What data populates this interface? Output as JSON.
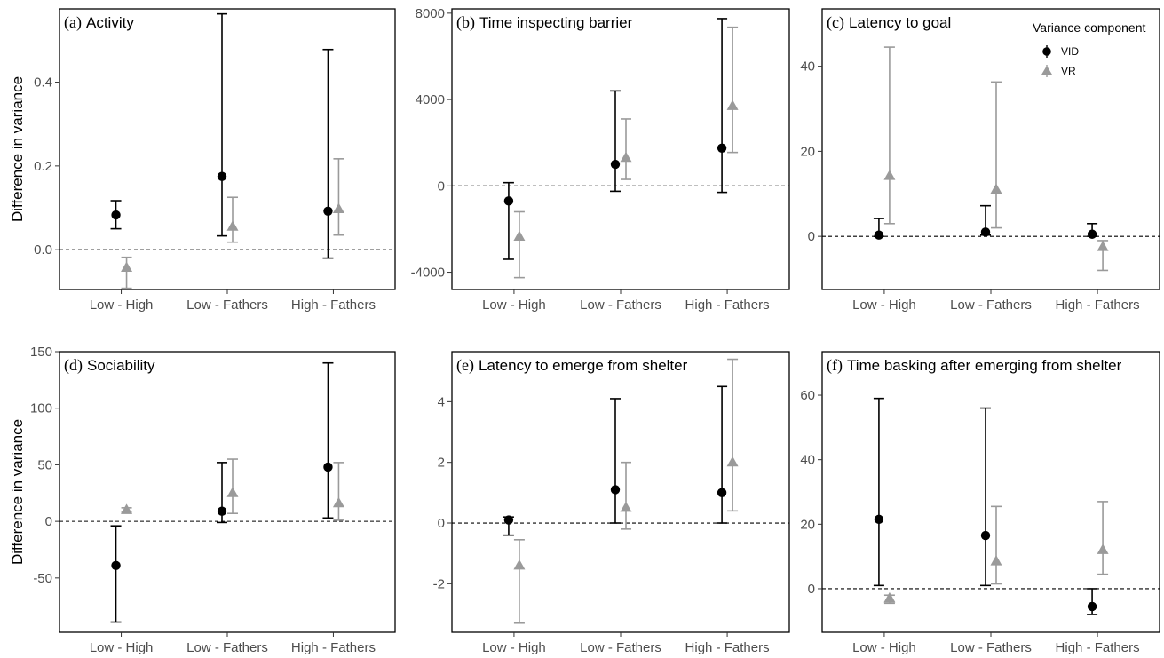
{
  "ylabel": "Difference in variance",
  "legend": {
    "title": "Variance component",
    "entries": [
      "VID",
      "VR"
    ]
  },
  "colors": {
    "VID": "#000000",
    "VR": "#9a9a9a",
    "refline": "#000000"
  },
  "chart_data": [
    {
      "type": "scatter",
      "letter": "(a)",
      "title": "Activity",
      "categories": [
        "Low - High",
        "Low - Fathers",
        "High - Fathers"
      ],
      "ylim": [
        -0.095,
        0.575
      ],
      "yticks": [
        0.0,
        0.2,
        0.4
      ],
      "ytick_labels": [
        "0.0",
        "0.2",
        "0.4"
      ],
      "reference_line": 0,
      "series": [
        {
          "name": "VID",
          "marker": "circle",
          "values": [
            0.083,
            0.175,
            0.092
          ],
          "lower": [
            0.05,
            0.033,
            -0.02
          ],
          "upper": [
            0.117,
            0.563,
            0.478
          ]
        },
        {
          "name": "VR",
          "marker": "triangle",
          "values": [
            -0.043,
            0.055,
            0.097
          ],
          "lower": [
            -0.092,
            0.018,
            0.035
          ],
          "upper": [
            -0.018,
            0.125,
            0.217
          ]
        }
      ]
    },
    {
      "type": "scatter",
      "letter": "(b)",
      "title": "Time inspecting barrier",
      "categories": [
        "Low - High",
        "Low - Fathers",
        "High - Fathers"
      ],
      "ylim": [
        -4800,
        8200
      ],
      "yticks": [
        -4000,
        0,
        4000,
        8000
      ],
      "ytick_labels": [
        "-4000",
        "0",
        "4000",
        "8000"
      ],
      "reference_line": 0,
      "series": [
        {
          "name": "VID",
          "marker": "circle",
          "values": [
            -700,
            1000,
            1750
          ],
          "lower": [
            -3400,
            -250,
            -300
          ],
          "upper": [
            150,
            4400,
            7750
          ]
        },
        {
          "name": "VR",
          "marker": "triangle",
          "values": [
            -2350,
            1300,
            3700
          ],
          "lower": [
            -4250,
            300,
            1550
          ],
          "upper": [
            -1200,
            3100,
            7350
          ]
        }
      ]
    },
    {
      "type": "scatter",
      "letter": "(c)",
      "title": "Latency to goal",
      "categories": [
        "Low - High",
        "Low - Fathers",
        "High - Fathers"
      ],
      "ylim": [
        -12.5,
        53.5
      ],
      "yticks": [
        0,
        20,
        40
      ],
      "ytick_labels": [
        "0",
        "20",
        "40"
      ],
      "reference_line": 0,
      "series": [
        {
          "name": "VID",
          "marker": "circle",
          "values": [
            0.3,
            1.0,
            0.5
          ],
          "lower": [
            0.0,
            0.3,
            0.0
          ],
          "upper": [
            4.2,
            7.2,
            3.0
          ]
        },
        {
          "name": "VR",
          "marker": "triangle",
          "values": [
            14.2,
            11.0,
            -2.5
          ],
          "lower": [
            3.0,
            2.0,
            -8.0
          ],
          "upper": [
            44.5,
            36.3,
            -1.0
          ]
        }
      ]
    },
    {
      "type": "scatter",
      "letter": "(d)",
      "title": "Sociability",
      "categories": [
        "Low - High",
        "Low - Fathers",
        "High - Fathers"
      ],
      "ylim": [
        -98,
        150
      ],
      "yticks": [
        -50,
        0,
        50,
        100,
        150
      ],
      "ytick_labels": [
        "-50",
        "0",
        "50",
        "100",
        "150"
      ],
      "reference_line": 0,
      "series": [
        {
          "name": "VID",
          "marker": "circle",
          "values": [
            -39,
            9,
            48
          ],
          "lower": [
            -89,
            -1,
            3
          ],
          "upper": [
            -4,
            52,
            140
          ]
        },
        {
          "name": "VR",
          "marker": "triangle",
          "values": [
            10,
            25,
            16
          ],
          "lower": [
            8,
            7,
            1
          ],
          "upper": [
            12,
            55,
            52
          ]
        }
      ]
    },
    {
      "type": "scatter",
      "letter": "(e)",
      "title": "Latency to emerge from shelter",
      "categories": [
        "Low - High",
        "Low - Fathers",
        "High - Fathers"
      ],
      "ylim": [
        -3.6,
        5.65
      ],
      "yticks": [
        -2,
        0,
        2,
        4
      ],
      "ytick_labels": [
        "-2",
        "0",
        "2",
        "4"
      ],
      "reference_line": 0,
      "series": [
        {
          "name": "VID",
          "marker": "circle",
          "values": [
            0.1,
            1.1,
            1.0
          ],
          "lower": [
            -0.4,
            0.0,
            0.0
          ],
          "upper": [
            0.2,
            4.1,
            4.5
          ]
        },
        {
          "name": "VR",
          "marker": "triangle",
          "values": [
            -1.4,
            0.5,
            2.0
          ],
          "lower": [
            -3.3,
            -0.2,
            0.4
          ],
          "upper": [
            -0.55,
            2.0,
            5.4
          ]
        }
      ]
    },
    {
      "type": "scatter",
      "letter": "(f)",
      "title": "Time basking after emerging from shelter",
      "categories": [
        "Low - High",
        "Low - Fathers",
        "High - Fathers"
      ],
      "ylim": [
        -13.5,
        73.5
      ],
      "yticks": [
        0,
        20,
        40,
        60
      ],
      "ytick_labels": [
        "0",
        "20",
        "40",
        "60"
      ],
      "reference_line": 0,
      "series": [
        {
          "name": "VID",
          "marker": "circle",
          "values": [
            21.5,
            16.5,
            -5.5
          ],
          "lower": [
            1.0,
            1.0,
            -8.0
          ],
          "upper": [
            59.0,
            56.0,
            0.0
          ]
        },
        {
          "name": "VR",
          "marker": "triangle",
          "values": [
            -3.0,
            8.5,
            12.0
          ],
          "lower": [
            -4.5,
            1.5,
            4.5
          ],
          "upper": [
            -2.0,
            25.5,
            27.0
          ]
        }
      ]
    }
  ]
}
